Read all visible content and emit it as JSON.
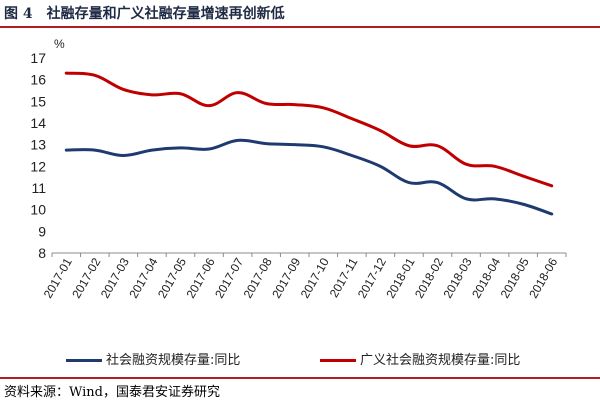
{
  "header": {
    "figure_number": "图 4",
    "title": "社融存量和广义社融存量增速再创新低"
  },
  "source": "资料来源：Wind，国泰君安证券研究",
  "colors": {
    "series1": "#1f3a6e",
    "series2": "#c00000",
    "rule": "#b01e23"
  },
  "chart_data": {
    "type": "line",
    "title": "",
    "ylabel": "%",
    "xlabel": "",
    "ylim": [
      8,
      17
    ],
    "yticks": [
      8,
      9,
      10,
      11,
      12,
      13,
      14,
      15,
      16,
      17
    ],
    "grid": false,
    "legend_position": "bottom",
    "x": [
      "2017-01",
      "2017-02",
      "2017-03",
      "2017-04",
      "2017-05",
      "2017-06",
      "2017-07",
      "2017-08",
      "2017-09",
      "2017-10",
      "2017-11",
      "2017-12",
      "2018-01",
      "2018-02",
      "2018-03",
      "2018-04",
      "2018-05",
      "2018-06"
    ],
    "xtick_labels": [
      "2017-01",
      "2017-02",
      "2017-03",
      "2017-04",
      "2017-05",
      "2017-06",
      "2017-07",
      "2017-08",
      "2017-09",
      "2017-10",
      "2017-11",
      "2017-12",
      "2018-01",
      "2018-02",
      "2018-03",
      "2018-04",
      "2018-05",
      "2018-06"
    ],
    "series": [
      {
        "name": "社会融资规模存量:同比",
        "values": [
          12.75,
          12.75,
          12.5,
          12.75,
          12.85,
          12.8,
          13.2,
          13.05,
          13.0,
          12.9,
          12.5,
          12.0,
          11.25,
          11.25,
          10.5,
          10.5,
          10.25,
          9.8
        ]
      },
      {
        "name": "广义社会融资规模存量:同比",
        "values": [
          16.3,
          16.2,
          15.55,
          15.3,
          15.35,
          14.8,
          15.4,
          14.9,
          14.85,
          14.7,
          14.2,
          13.65,
          12.95,
          12.95,
          12.1,
          12.0,
          11.55,
          11.1
        ]
      }
    ]
  }
}
